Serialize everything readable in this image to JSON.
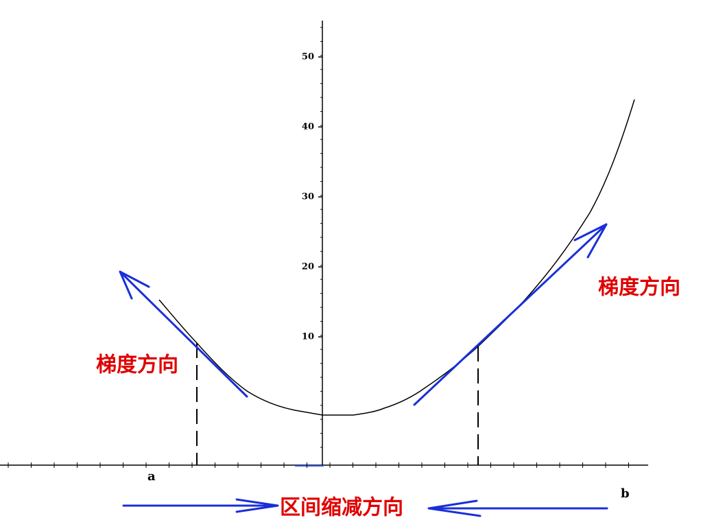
{
  "axis": {
    "yticks": [
      10,
      20,
      30,
      40,
      50
    ]
  },
  "labels": {
    "left_gradient": "梯度方向",
    "right_gradient": "梯度方向",
    "a": "a",
    "b": "b",
    "interval": "区间缩减方向"
  }
}
